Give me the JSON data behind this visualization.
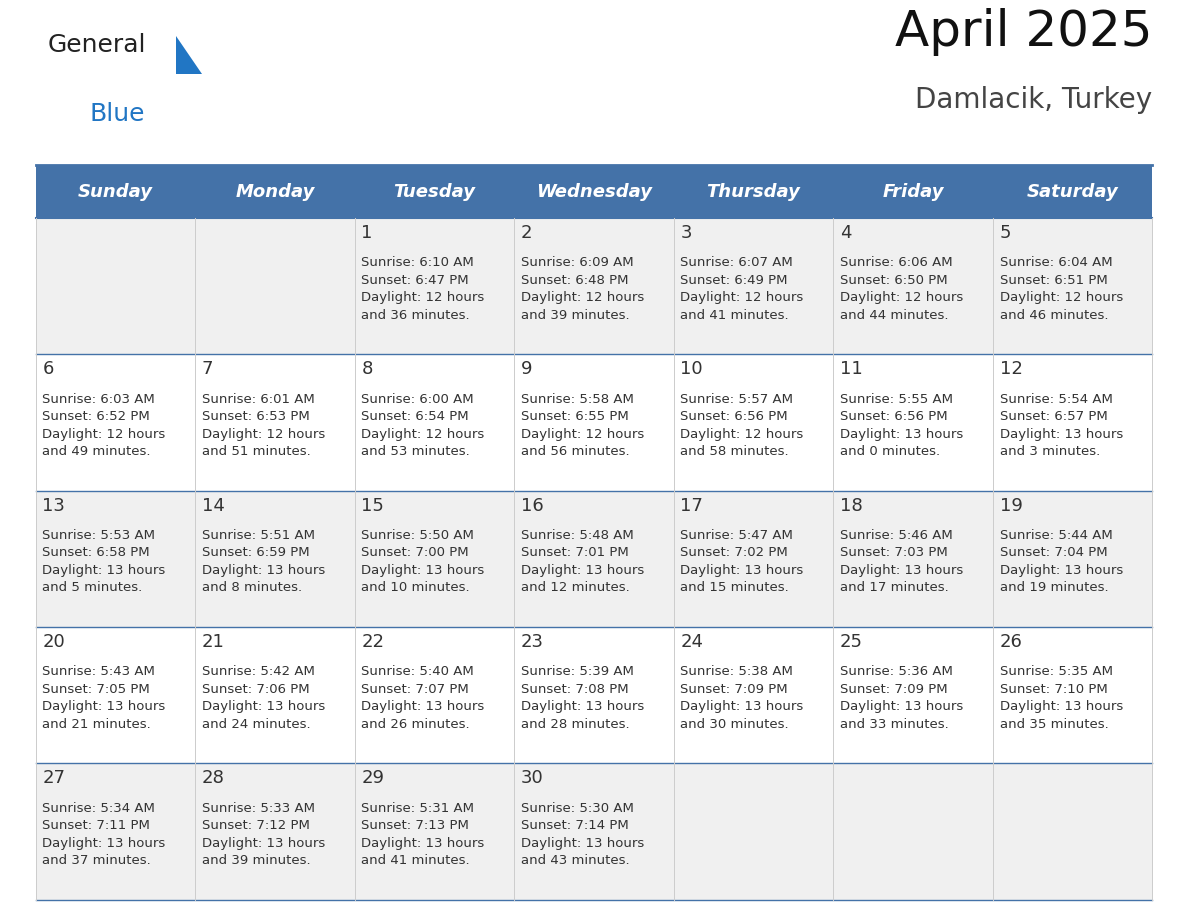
{
  "title": "April 2025",
  "subtitle": "Damlacik, Turkey",
  "header_color": "#4472a8",
  "header_text_color": "#ffffff",
  "cell_bg_color": "#ffffff",
  "alt_cell_bg_color": "#f0f0f0",
  "line_color": "#4472a8",
  "day_names": [
    "Sunday",
    "Monday",
    "Tuesday",
    "Wednesday",
    "Thursday",
    "Friday",
    "Saturday"
  ],
  "title_fontsize": 36,
  "subtitle_fontsize": 20,
  "header_fontsize": 13,
  "day_num_fontsize": 13,
  "cell_fontsize": 9.5,
  "logo_text1": "General",
  "logo_text2": "Blue",
  "logo_color1": "#222222",
  "logo_color2": "#2176c4",
  "logo_triangle_color": "#2176c4",
  "weeks": [
    [
      {
        "day": null,
        "info": null
      },
      {
        "day": null,
        "info": null
      },
      {
        "day": "1",
        "info": "Sunrise: 6:10 AM\nSunset: 6:47 PM\nDaylight: 12 hours\nand 36 minutes."
      },
      {
        "day": "2",
        "info": "Sunrise: 6:09 AM\nSunset: 6:48 PM\nDaylight: 12 hours\nand 39 minutes."
      },
      {
        "day": "3",
        "info": "Sunrise: 6:07 AM\nSunset: 6:49 PM\nDaylight: 12 hours\nand 41 minutes."
      },
      {
        "day": "4",
        "info": "Sunrise: 6:06 AM\nSunset: 6:50 PM\nDaylight: 12 hours\nand 44 minutes."
      },
      {
        "day": "5",
        "info": "Sunrise: 6:04 AM\nSunset: 6:51 PM\nDaylight: 12 hours\nand 46 minutes."
      }
    ],
    [
      {
        "day": "6",
        "info": "Sunrise: 6:03 AM\nSunset: 6:52 PM\nDaylight: 12 hours\nand 49 minutes."
      },
      {
        "day": "7",
        "info": "Sunrise: 6:01 AM\nSunset: 6:53 PM\nDaylight: 12 hours\nand 51 minutes."
      },
      {
        "day": "8",
        "info": "Sunrise: 6:00 AM\nSunset: 6:54 PM\nDaylight: 12 hours\nand 53 minutes."
      },
      {
        "day": "9",
        "info": "Sunrise: 5:58 AM\nSunset: 6:55 PM\nDaylight: 12 hours\nand 56 minutes."
      },
      {
        "day": "10",
        "info": "Sunrise: 5:57 AM\nSunset: 6:56 PM\nDaylight: 12 hours\nand 58 minutes."
      },
      {
        "day": "11",
        "info": "Sunrise: 5:55 AM\nSunset: 6:56 PM\nDaylight: 13 hours\nand 0 minutes."
      },
      {
        "day": "12",
        "info": "Sunrise: 5:54 AM\nSunset: 6:57 PM\nDaylight: 13 hours\nand 3 minutes."
      }
    ],
    [
      {
        "day": "13",
        "info": "Sunrise: 5:53 AM\nSunset: 6:58 PM\nDaylight: 13 hours\nand 5 minutes."
      },
      {
        "day": "14",
        "info": "Sunrise: 5:51 AM\nSunset: 6:59 PM\nDaylight: 13 hours\nand 8 minutes."
      },
      {
        "day": "15",
        "info": "Sunrise: 5:50 AM\nSunset: 7:00 PM\nDaylight: 13 hours\nand 10 minutes."
      },
      {
        "day": "16",
        "info": "Sunrise: 5:48 AM\nSunset: 7:01 PM\nDaylight: 13 hours\nand 12 minutes."
      },
      {
        "day": "17",
        "info": "Sunrise: 5:47 AM\nSunset: 7:02 PM\nDaylight: 13 hours\nand 15 minutes."
      },
      {
        "day": "18",
        "info": "Sunrise: 5:46 AM\nSunset: 7:03 PM\nDaylight: 13 hours\nand 17 minutes."
      },
      {
        "day": "19",
        "info": "Sunrise: 5:44 AM\nSunset: 7:04 PM\nDaylight: 13 hours\nand 19 minutes."
      }
    ],
    [
      {
        "day": "20",
        "info": "Sunrise: 5:43 AM\nSunset: 7:05 PM\nDaylight: 13 hours\nand 21 minutes."
      },
      {
        "day": "21",
        "info": "Sunrise: 5:42 AM\nSunset: 7:06 PM\nDaylight: 13 hours\nand 24 minutes."
      },
      {
        "day": "22",
        "info": "Sunrise: 5:40 AM\nSunset: 7:07 PM\nDaylight: 13 hours\nand 26 minutes."
      },
      {
        "day": "23",
        "info": "Sunrise: 5:39 AM\nSunset: 7:08 PM\nDaylight: 13 hours\nand 28 minutes."
      },
      {
        "day": "24",
        "info": "Sunrise: 5:38 AM\nSunset: 7:09 PM\nDaylight: 13 hours\nand 30 minutes."
      },
      {
        "day": "25",
        "info": "Sunrise: 5:36 AM\nSunset: 7:09 PM\nDaylight: 13 hours\nand 33 minutes."
      },
      {
        "day": "26",
        "info": "Sunrise: 5:35 AM\nSunset: 7:10 PM\nDaylight: 13 hours\nand 35 minutes."
      }
    ],
    [
      {
        "day": "27",
        "info": "Sunrise: 5:34 AM\nSunset: 7:11 PM\nDaylight: 13 hours\nand 37 minutes."
      },
      {
        "day": "28",
        "info": "Sunrise: 5:33 AM\nSunset: 7:12 PM\nDaylight: 13 hours\nand 39 minutes."
      },
      {
        "day": "29",
        "info": "Sunrise: 5:31 AM\nSunset: 7:13 PM\nDaylight: 13 hours\nand 41 minutes."
      },
      {
        "day": "30",
        "info": "Sunrise: 5:30 AM\nSunset: 7:14 PM\nDaylight: 13 hours\nand 43 minutes."
      },
      {
        "day": null,
        "info": null
      },
      {
        "day": null,
        "info": null
      },
      {
        "day": null,
        "info": null
      }
    ]
  ]
}
